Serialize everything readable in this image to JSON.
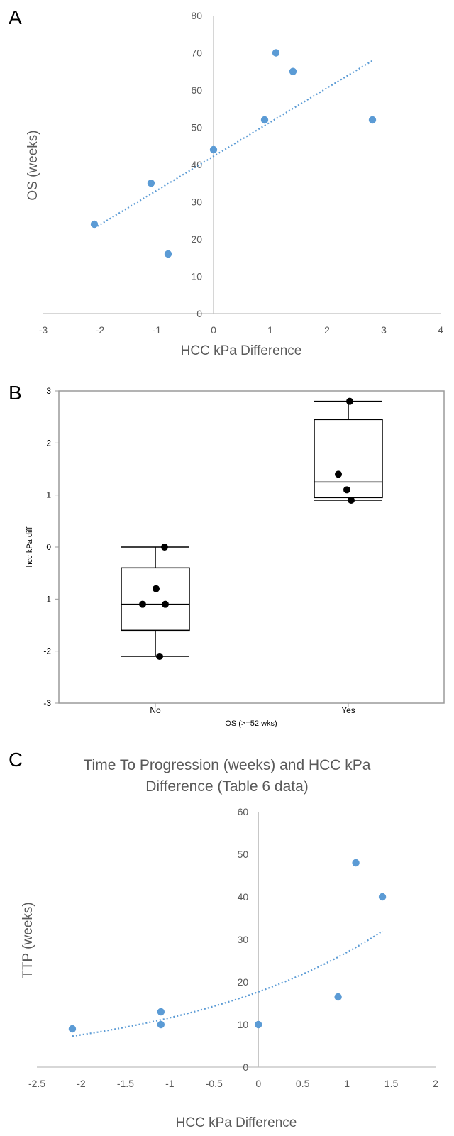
{
  "chart_data": [
    {
      "panel": "A",
      "type": "scatter",
      "xlabel": "HCC kPa Difference",
      "ylabel": "OS (weeks)",
      "xlim": [
        -3,
        4
      ],
      "ylim": [
        0,
        80
      ],
      "x_ticks": [
        "-3",
        "-2",
        "-1",
        "0",
        "1",
        "2",
        "3",
        "4"
      ],
      "y_ticks": [
        "0",
        "10",
        "20",
        "30",
        "40",
        "50",
        "60",
        "70",
        "80"
      ],
      "series": [
        {
          "x": [
            -2.1,
            -1.1,
            -0.8,
            0.0,
            0.9,
            1.1,
            1.4,
            2.8
          ],
          "y": [
            24,
            35,
            16,
            44,
            52,
            70,
            65,
            52
          ]
        }
      ],
      "trendline": {
        "type": "linear",
        "x_range": [
          -2.1,
          2.8
        ]
      },
      "color": "#5b9bd5",
      "grid": false
    },
    {
      "panel": "B",
      "type": "box",
      "xlabel": "OS (>=52 wks)",
      "ylabel": "hcc kPa diff",
      "categories": [
        "No",
        "Yes"
      ],
      "ylim": [
        -3,
        3
      ],
      "y_ticks": [
        "-3",
        "-2",
        "-1",
        "0",
        "1",
        "2",
        "3"
      ],
      "boxes": [
        {
          "category": "No",
          "min": -2.1,
          "q1": -1.6,
          "median": -1.1,
          "q3": -0.4,
          "max": 0.0
        },
        {
          "category": "Yes",
          "min": 0.9,
          "q1": 0.95,
          "median": 1.25,
          "q3": 2.45,
          "max": 2.8
        }
      ],
      "points": [
        {
          "category": "No",
          "values": [
            0.0,
            -0.8,
            -1.1,
            -1.1,
            -2.1
          ]
        },
        {
          "category": "Yes",
          "values": [
            2.8,
            1.4,
            1.1,
            0.9
          ]
        }
      ],
      "grid": false
    },
    {
      "panel": "C",
      "type": "scatter",
      "title": "Time To Progression (weeks) and HCC kPa Difference (Table 6 data)",
      "xlabel": "HCC kPa Difference",
      "ylabel": "TTP (weeks)",
      "xlim": [
        -2.5,
        2
      ],
      "ylim": [
        0,
        60
      ],
      "x_ticks": [
        "-2.5",
        "-2",
        "-1.5",
        "-1",
        "-0.5",
        "0",
        "0.5",
        "1",
        "1.5",
        "2"
      ],
      "y_ticks": [
        "0",
        "10",
        "20",
        "30",
        "40",
        "50",
        "60"
      ],
      "series": [
        {
          "x": [
            -2.1,
            -1.1,
            -1.1,
            0.0,
            0.9,
            1.1,
            1.4
          ],
          "y": [
            9,
            13,
            10,
            10,
            16.5,
            48,
            40
          ]
        }
      ],
      "trendline": {
        "type": "exponential",
        "x_range": [
          -2.1,
          1.4
        ]
      },
      "color": "#5b9bd5",
      "grid": false
    }
  ],
  "panels": {
    "a": "A",
    "b": "B",
    "c": "C"
  },
  "titles": {
    "c_line1": "Time To Progression (weeks) and HCC kPa",
    "c_line2": "Difference (Table 6 data)"
  }
}
